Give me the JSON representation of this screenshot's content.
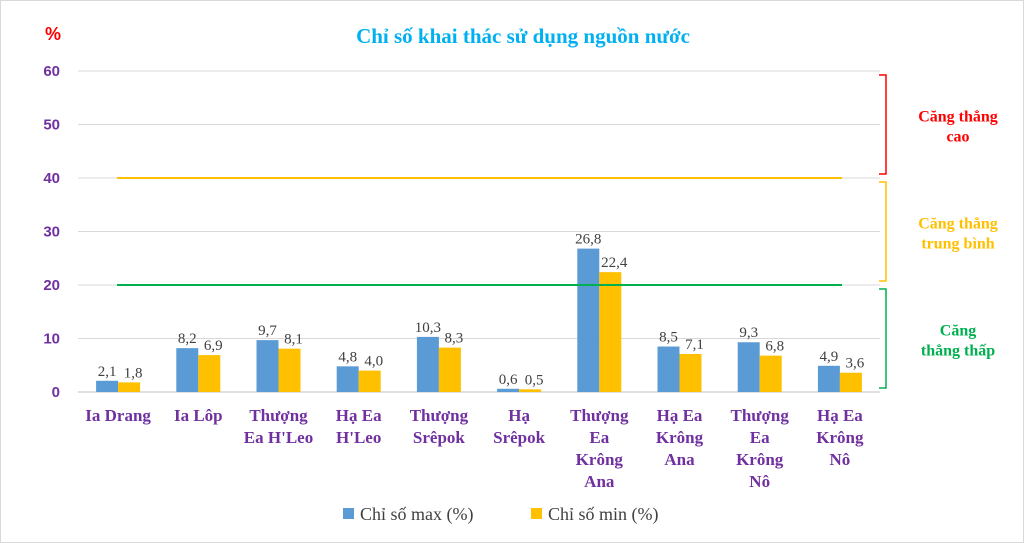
{
  "chart_data": {
    "type": "bar",
    "title": "Chỉ số khai thác sử dụng nguồn nước",
    "ylabel": "%",
    "ylim": [
      0,
      60
    ],
    "yticks": [
      "0",
      "10",
      "20",
      "30",
      "40",
      "50",
      "60"
    ],
    "grid": true,
    "legend_position": "bottom",
    "categories": [
      [
        "Ia Drang"
      ],
      [
        "Ia Lôp"
      ],
      [
        "Thượng",
        "Ea H'Leo"
      ],
      [
        "Hạ Ea",
        "H'Leo"
      ],
      [
        "Thượng",
        "Srêpok"
      ],
      [
        "Hạ",
        "Srêpok"
      ],
      [
        "Thượng",
        "Ea",
        "Krông",
        "Ana"
      ],
      [
        "Hạ Ea",
        "Krông",
        "Ana"
      ],
      [
        "Thượng",
        "Ea",
        "Krông",
        "Nô"
      ],
      [
        "Hạ Ea",
        "Krông",
        "Nô"
      ]
    ],
    "series": [
      {
        "name": "Chỉ số max (%)",
        "color": "#5b9bd5",
        "values": [
          2.1,
          8.2,
          9.7,
          4.8,
          10.3,
          0.6,
          26.8,
          8.5,
          9.3,
          4.9
        ],
        "labels": [
          "2,1",
          "8,2",
          "9,7",
          "4,8",
          "10,3",
          "0,6",
          "26,8",
          "8,5",
          "9,3",
          "4,9"
        ]
      },
      {
        "name": "Chỉ số min (%)",
        "color": "#ffc000",
        "values": [
          1.8,
          6.9,
          8.1,
          4.0,
          8.3,
          0.5,
          22.4,
          7.1,
          6.8,
          3.6
        ],
        "labels": [
          "1,8",
          "6,9",
          "8,1",
          "4,0",
          "8,3",
          "0,5",
          "22,4",
          "7,1",
          "6,8",
          "3,6"
        ]
      }
    ],
    "threshold_lines": [
      {
        "value": 40,
        "color": "#ffc000"
      },
      {
        "value": 20,
        "color": "#00b050"
      }
    ],
    "zones": [
      {
        "label": [
          "Căng thẳng",
          "cao"
        ],
        "range": [
          40,
          60
        ],
        "color": "#ff0000"
      },
      {
        "label": [
          "Căng thẳng",
          "trung bình"
        ],
        "range": [
          20,
          40
        ],
        "color": "#ffc000"
      },
      {
        "label": [
          "Căng",
          "thẳng thấp"
        ],
        "range": [
          0,
          20
        ],
        "color": "#00b050"
      }
    ]
  }
}
